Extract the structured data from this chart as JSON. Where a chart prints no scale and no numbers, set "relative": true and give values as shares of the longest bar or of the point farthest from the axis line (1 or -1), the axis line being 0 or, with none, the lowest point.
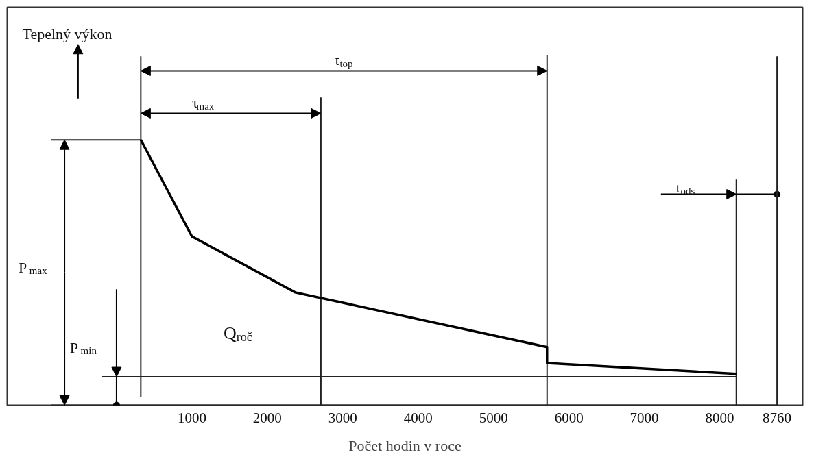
{
  "chart_data": {
    "type": "line",
    "relative": true,
    "xlabel": "Počet hodin v roce",
    "x": [
      322,
      1000,
      2370,
      5710,
      5710,
      8220
    ],
    "values": [
      1,
      0.636,
      0.425,
      0.219,
      0.159,
      0.118
    ],
    "color": "#000000",
    "xlim": [
      -1450,
      9100
    ],
    "xticks": [
      1000,
      2000,
      3000,
      4000,
      5000,
      6000,
      7000,
      8000,
      8760
    ],
    "ref_lines": [
      {
        "axis": "x",
        "value": 322
      },
      {
        "axis": "x",
        "value": 2710
      },
      {
        "axis": "x",
        "value": 5710
      },
      {
        "axis": "x",
        "value": 8220,
        "label": "t$_{ods}$"
      },
      {
        "axis": "x",
        "value": 8760
      },
      {
        "axis": "y",
        "value": 1,
        "label": "P$_{max}$"
      },
      {
        "axis": "y",
        "value": 0.107,
        "label": "P$_{min}$"
      }
    ],
    "annotations": [
      "Tepelný výkon",
      "τ$_{max}$",
      "t$_{top}$",
      "Q$_{roč}$"
    ],
    "grid": false,
    "marker": "none",
    "line_style": "solid"
  }
}
